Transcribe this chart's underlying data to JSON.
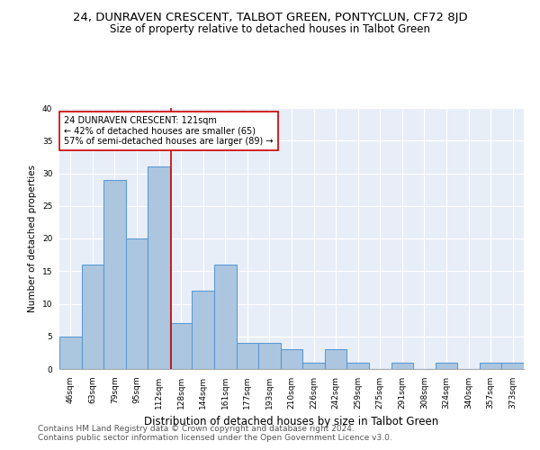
{
  "title": "24, DUNRAVEN CRESCENT, TALBOT GREEN, PONTYCLUN, CF72 8JD",
  "subtitle": "Size of property relative to detached houses in Talbot Green",
  "xlabel": "Distribution of detached houses by size in Talbot Green",
  "ylabel": "Number of detached properties",
  "bins": [
    "46sqm",
    "63sqm",
    "79sqm",
    "95sqm",
    "112sqm",
    "128sqm",
    "144sqm",
    "161sqm",
    "177sqm",
    "193sqm",
    "210sqm",
    "226sqm",
    "242sqm",
    "259sqm",
    "275sqm",
    "291sqm",
    "308sqm",
    "324sqm",
    "340sqm",
    "357sqm",
    "373sqm"
  ],
  "values": [
    5,
    16,
    29,
    20,
    31,
    7,
    12,
    16,
    4,
    4,
    3,
    1,
    3,
    1,
    0,
    1,
    0,
    1,
    0,
    1,
    1
  ],
  "bar_color": "#adc6e0",
  "bar_edgecolor": "#5b9bd5",
  "vline_color": "#cc0000",
  "annotation_line1": "24 DUNRAVEN CRESCENT: 121sqm",
  "annotation_line2": "← 42% of detached houses are smaller (65)",
  "annotation_line3": "57% of semi-detached houses are larger (89) →",
  "annotation_box_color": "#cc0000",
  "ylim": [
    0,
    40
  ],
  "yticks": [
    0,
    5,
    10,
    15,
    20,
    25,
    30,
    35,
    40
  ],
  "bg_color": "#e8eef7",
  "footer1": "Contains HM Land Registry data © Crown copyright and database right 2024.",
  "footer2": "Contains public sector information licensed under the Open Government Licence v3.0.",
  "title_fontsize": 9.5,
  "subtitle_fontsize": 8.5,
  "xlabel_fontsize": 8.5,
  "ylabel_fontsize": 7.5,
  "tick_fontsize": 6.5,
  "annotation_fontsize": 7,
  "footer_fontsize": 6.5
}
